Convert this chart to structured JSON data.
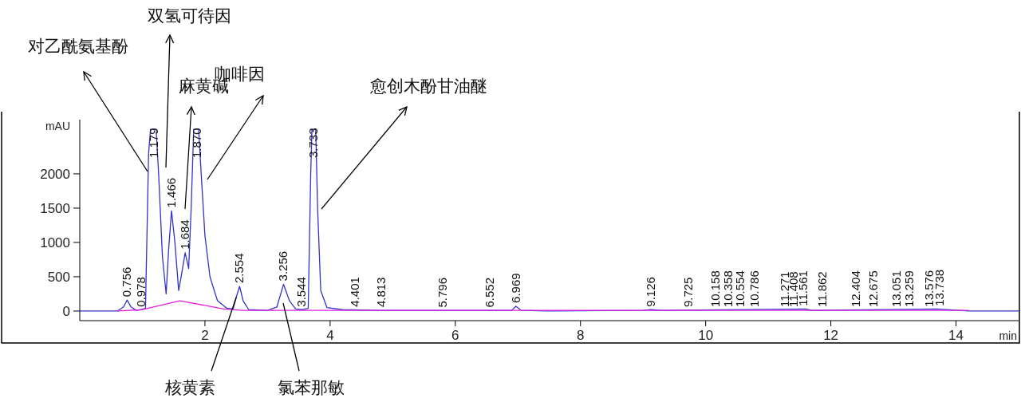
{
  "chart_data": {
    "type": "line",
    "xlabel": "min",
    "ylabel": "mAU",
    "xlim": [
      0,
      15
    ],
    "xticks": [
      2,
      4,
      6,
      8,
      10,
      12,
      14
    ],
    "ylim": [
      -140,
      2790
    ],
    "yticks": [
      0,
      500,
      1000,
      1500,
      2000
    ],
    "grid": false,
    "series": [
      {
        "color": "#3333cc",
        "x": [
          0,
          0.6,
          0.7,
          0.756,
          0.82,
          0.9,
          0.978,
          1.05,
          1.1,
          1.13,
          1.22,
          1.26,
          1.32,
          1.38,
          1.42,
          1.466,
          1.52,
          1.58,
          1.62,
          1.684,
          1.74,
          1.78,
          1.82,
          1.9,
          1.94,
          2.0,
          2.08,
          2.2,
          2.35,
          2.45,
          2.5,
          2.554,
          2.61,
          2.7,
          3.0,
          3.15,
          3.256,
          3.35,
          3.45,
          3.55,
          3.65,
          3.69,
          3.71,
          3.77,
          3.8,
          3.85,
          3.95,
          4.2,
          4.8,
          5.8,
          6.9,
          6.969,
          7.05,
          7.5,
          9.0,
          9.126,
          9.3,
          11.6,
          11.7,
          13.7,
          14.2,
          15
        ],
        "values": [
          0,
          0,
          60,
          160,
          60,
          10,
          20,
          40,
          2300,
          2650,
          2650,
          2000,
          800,
          250,
          900,
          1460,
          1000,
          300,
          500,
          850,
          620,
          1500,
          2650,
          2650,
          2000,
          1100,
          500,
          150,
          40,
          30,
          200,
          360,
          150,
          20,
          10,
          60,
          390,
          150,
          30,
          20,
          40,
          2000,
          2650,
          2650,
          1500,
          300,
          50,
          20,
          10,
          10,
          10,
          70,
          10,
          0,
          10,
          20,
          10,
          30,
          10,
          30,
          0,
          0
        ]
      },
      {
        "color": "#e020e0",
        "x": [
          0.6,
          1.0,
          1.6,
          2.3,
          2.6,
          14.2
        ],
        "values": [
          0,
          20,
          150,
          30,
          10,
          10
        ]
      }
    ],
    "annotations": [
      {
        "text": "0.756",
        "x": 0.756,
        "y": 160
      },
      {
        "text": "0.978",
        "x": 0.978,
        "y": 15
      },
      {
        "text": "1.179",
        "x": 1.179,
        "y": 2650
      },
      {
        "text": "1.466",
        "x": 1.466,
        "y": 1460
      },
      {
        "text": "1.684",
        "x": 1.684,
        "y": 850
      },
      {
        "text": "1.870",
        "x": 1.87,
        "y": 2650
      },
      {
        "text": "2.554",
        "x": 2.554,
        "y": 360
      },
      {
        "text": "3.256",
        "x": 3.256,
        "y": 390
      },
      {
        "text": "3.544",
        "x": 3.544,
        "y": 15
      },
      {
        "text": "3.733",
        "x": 3.733,
        "y": 2650
      },
      {
        "text": "4.401",
        "x": 4.401,
        "y": 15
      },
      {
        "text": "4.813",
        "x": 4.813,
        "y": 10
      },
      {
        "text": "5.796",
        "x": 5.796,
        "y": 5
      },
      {
        "text": "6.552",
        "x": 6.552,
        "y": 5
      },
      {
        "text": "6.969",
        "x": 6.969,
        "y": 70
      },
      {
        "text": "9.126",
        "x": 9.126,
        "y": 15
      },
      {
        "text": "9.725",
        "x": 9.725,
        "y": 10
      },
      {
        "text": "10.158",
        "x": 10.158,
        "y": 10
      },
      {
        "text": "10.358",
        "x": 10.358,
        "y": 10
      },
      {
        "text": "10.554",
        "x": 10.554,
        "y": 10
      },
      {
        "text": "10.786",
        "x": 10.786,
        "y": 10
      },
      {
        "text": "11.271",
        "x": 11.271,
        "y": 10
      },
      {
        "text": "11.408",
        "x": 11.408,
        "y": 10
      },
      {
        "text": "11.561",
        "x": 11.561,
        "y": 25
      },
      {
        "text": "11.862",
        "x": 11.862,
        "y": 10
      },
      {
        "text": "12.404",
        "x": 12.404,
        "y": 10
      },
      {
        "text": "12.675",
        "x": 12.675,
        "y": 10
      },
      {
        "text": "13.051",
        "x": 13.051,
        "y": 10
      },
      {
        "text": "13.259",
        "x": 13.259,
        "y": 10
      },
      {
        "text": "13.576",
        "x": 13.576,
        "y": 15
      },
      {
        "text": "13.738",
        "x": 13.738,
        "y": 25
      },
      "对乙酰氨基酚",
      "双氢可待因",
      "麻黄碱",
      "咖啡因",
      "愈创木酚甘油醚",
      {
        "text": "核黄素",
        "x": 2.5,
        "y": 200
      },
      "氯苯那敏"
    ]
  }
}
